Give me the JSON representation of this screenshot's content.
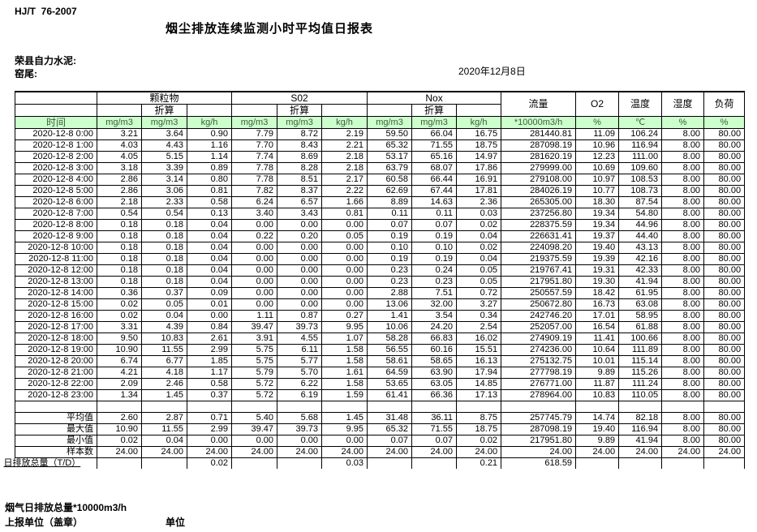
{
  "header": {
    "standard_no": "HJ/T  76-2007",
    "title": "烟尘排放连续监测小时平均值日报表",
    "company": "荣县自力水泥:",
    "station": "窑尾:",
    "date": "2020年12月8日"
  },
  "table": {
    "time_label": "时间",
    "converted_label": "折算",
    "groups": [
      "颗粒物",
      "S02",
      "Nox"
    ],
    "single_cols": [
      "流量",
      "O2",
      "温度",
      "湿度",
      "负荷"
    ],
    "units": [
      "mg/m3",
      "mg/m3",
      "kg/h",
      "mg/m3",
      "mg/m3",
      "kg/h",
      "mg/m3",
      "mg/m3",
      "kg/h",
      "*10000m3/h",
      "%",
      "℃",
      "%",
      "%"
    ],
    "rows": [
      {
        "time": "2020-12-8 0:00",
        "values": [
          "3.21",
          "3.64",
          "0.90",
          "7.79",
          "8.72",
          "2.19",
          "59.50",
          "66.04",
          "16.75",
          "281440.81",
          "11.09",
          "106.24",
          "8.00",
          "80.00"
        ]
      },
      {
        "time": "2020-12-8 1:00",
        "values": [
          "4.03",
          "4.43",
          "1.16",
          "7.70",
          "8.43",
          "2.21",
          "65.32",
          "71.55",
          "18.75",
          "287098.19",
          "10.96",
          "116.94",
          "8.00",
          "80.00"
        ]
      },
      {
        "time": "2020-12-8 2:00",
        "values": [
          "4.05",
          "5.15",
          "1.14",
          "7.74",
          "8.69",
          "2.18",
          "53.17",
          "65.16",
          "14.97",
          "281620.19",
          "12.23",
          "111.00",
          "8.00",
          "80.00"
        ]
      },
      {
        "time": "2020-12-8 3:00",
        "values": [
          "3.18",
          "3.39",
          "0.89",
          "7.78",
          "8.28",
          "2.18",
          "63.79",
          "68.07",
          "17.86",
          "279999.00",
          "10.69",
          "109.60",
          "8.00",
          "80.00"
        ]
      },
      {
        "time": "2020-12-8 4:00",
        "values": [
          "2.86",
          "3.14",
          "0.80",
          "7.78",
          "8.51",
          "2.17",
          "60.58",
          "66.44",
          "16.91",
          "279108.00",
          "10.97",
          "108.53",
          "8.00",
          "80.00"
        ]
      },
      {
        "time": "2020-12-8 5:00",
        "values": [
          "2.86",
          "3.06",
          "0.81",
          "7.82",
          "8.37",
          "2.22",
          "62.69",
          "67.44",
          "17.81",
          "284026.19",
          "10.77",
          "108.73",
          "8.00",
          "80.00"
        ]
      },
      {
        "time": "2020-12-8 6:00",
        "values": [
          "2.18",
          "2.33",
          "0.58",
          "6.24",
          "6.57",
          "1.66",
          "8.89",
          "14.63",
          "2.36",
          "265305.00",
          "18.30",
          "87.54",
          "8.00",
          "80.00"
        ]
      },
      {
        "time": "2020-12-8 7:00",
        "values": [
          "0.54",
          "0.54",
          "0.13",
          "3.40",
          "3.43",
          "0.81",
          "0.11",
          "0.11",
          "0.03",
          "237256.80",
          "19.34",
          "54.80",
          "8.00",
          "80.00"
        ]
      },
      {
        "time": "2020-12-8 8:00",
        "values": [
          "0.18",
          "0.18",
          "0.04",
          "0.00",
          "0.00",
          "0.00",
          "0.07",
          "0.07",
          "0.02",
          "228375.59",
          "19.34",
          "44.96",
          "8.00",
          "80.00"
        ]
      },
      {
        "time": "2020-12-8 9:00",
        "values": [
          "0.18",
          "0.18",
          "0.04",
          "0.22",
          "0.20",
          "0.05",
          "0.19",
          "0.19",
          "0.04",
          "226631.41",
          "19.37",
          "44.40",
          "8.00",
          "80.00"
        ]
      },
      {
        "time": "2020-12-8 10:00",
        "values": [
          "0.18",
          "0.18",
          "0.04",
          "0.00",
          "0.00",
          "0.00",
          "0.10",
          "0.10",
          "0.02",
          "224098.20",
          "19.40",
          "43.13",
          "8.00",
          "80.00"
        ]
      },
      {
        "time": "2020-12-8 11:00",
        "values": [
          "0.18",
          "0.18",
          "0.04",
          "0.00",
          "0.00",
          "0.00",
          "0.19",
          "0.19",
          "0.04",
          "219375.59",
          "19.39",
          "42.16",
          "8.00",
          "80.00"
        ]
      },
      {
        "time": "2020-12-8 12:00",
        "values": [
          "0.18",
          "0.18",
          "0.04",
          "0.00",
          "0.00",
          "0.00",
          "0.23",
          "0.24",
          "0.05",
          "219767.41",
          "19.31",
          "42.33",
          "8.00",
          "80.00"
        ]
      },
      {
        "time": "2020-12-8 13:00",
        "values": [
          "0.18",
          "0.18",
          "0.04",
          "0.00",
          "0.00",
          "0.00",
          "0.23",
          "0.23",
          "0.05",
          "217951.80",
          "19.30",
          "41.94",
          "8.00",
          "80.00"
        ]
      },
      {
        "time": "2020-12-8 14:00",
        "values": [
          "0.36",
          "0.37",
          "0.09",
          "0.00",
          "0.00",
          "0.00",
          "2.88",
          "7.51",
          "0.72",
          "250557.59",
          "18.42",
          "61.95",
          "8.00",
          "80.00"
        ]
      },
      {
        "time": "2020-12-8 15:00",
        "values": [
          "0.02",
          "0.05",
          "0.01",
          "0.00",
          "0.00",
          "0.00",
          "13.06",
          "32.00",
          "3.27",
          "250672.80",
          "16.73",
          "63.08",
          "8.00",
          "80.00"
        ]
      },
      {
        "time": "2020-12-8 16:00",
        "values": [
          "0.02",
          "0.04",
          "0.00",
          "1.11",
          "0.87",
          "0.27",
          "1.41",
          "3.54",
          "0.34",
          "242746.20",
          "17.01",
          "58.95",
          "8.00",
          "80.00"
        ]
      },
      {
        "time": "2020-12-8 17:00",
        "values": [
          "3.31",
          "4.39",
          "0.84",
          "39.47",
          "39.73",
          "9.95",
          "10.06",
          "24.20",
          "2.54",
          "252057.00",
          "16.54",
          "61.88",
          "8.00",
          "80.00"
        ]
      },
      {
        "time": "2020-12-8 18:00",
        "values": [
          "9.50",
          "10.83",
          "2.61",
          "3.91",
          "4.55",
          "1.07",
          "58.28",
          "66.83",
          "16.02",
          "274909.19",
          "11.41",
          "100.66",
          "8.00",
          "80.00"
        ]
      },
      {
        "time": "2020-12-8 19:00",
        "values": [
          "10.90",
          "11.55",
          "2.99",
          "5.75",
          "6.11",
          "1.58",
          "56.55",
          "60.16",
          "15.51",
          "274236.00",
          "10.64",
          "111.89",
          "8.00",
          "80.00"
        ]
      },
      {
        "time": "2020-12-8 20:00",
        "values": [
          "6.74",
          "6.77",
          "1.85",
          "5.75",
          "5.77",
          "1.58",
          "58.61",
          "58.65",
          "16.13",
          "275132.75",
          "10.01",
          "115.14",
          "8.00",
          "80.00"
        ]
      },
      {
        "time": "2020-12-8 21:00",
        "values": [
          "4.21",
          "4.18",
          "1.17",
          "5.79",
          "5.70",
          "1.61",
          "64.59",
          "63.90",
          "17.94",
          "277798.19",
          "9.89",
          "115.26",
          "8.00",
          "80.00"
        ]
      },
      {
        "time": "2020-12-8 22:00",
        "values": [
          "2.09",
          "2.46",
          "0.58",
          "5.72",
          "6.22",
          "1.58",
          "53.65",
          "63.05",
          "14.85",
          "276771.00",
          "11.87",
          "111.24",
          "8.00",
          "80.00"
        ]
      },
      {
        "time": "2020-12-8 23:00",
        "values": [
          "1.34",
          "1.45",
          "0.37",
          "5.72",
          "6.19",
          "1.59",
          "61.41",
          "66.36",
          "17.13",
          "278964.00",
          "10.83",
          "110.05",
          "8.00",
          "80.00"
        ]
      }
    ],
    "summary": [
      {
        "label": "平均值",
        "values": [
          "2.60",
          "2.87",
          "0.71",
          "5.40",
          "5.68",
          "1.45",
          "31.48",
          "36.11",
          "8.75",
          "257745.79",
          "14.74",
          "82.18",
          "8.00",
          "80.00"
        ]
      },
      {
        "label": "最大值",
        "values": [
          "10.90",
          "11.55",
          "2.99",
          "39.47",
          "39.73",
          "9.95",
          "65.32",
          "71.55",
          "18.75",
          "287098.19",
          "19.40",
          "116.94",
          "8.00",
          "80.00"
        ]
      },
      {
        "label": "最小值",
        "values": [
          "0.02",
          "0.04",
          "0.00",
          "0.00",
          "0.00",
          "0.00",
          "0.07",
          "0.07",
          "0.02",
          "217951.80",
          "9.89",
          "41.94",
          "8.00",
          "80.00"
        ]
      },
      {
        "label": "样本数",
        "values": [
          "24.00",
          "24.00",
          "24.00",
          "24.00",
          "24.00",
          "24.00",
          "24.00",
          "24.00",
          "24.00",
          "24.00",
          "24.00",
          "24.00",
          "24.00",
          "24.00"
        ]
      },
      {
        "label": "日排放总量（T/D）",
        "values": [
          "",
          "",
          "0.02",
          "",
          "",
          "0.03",
          "",
          "",
          "0.21",
          "618.59",
          "",
          "",
          "",
          ""
        ]
      }
    ],
    "colors": {
      "header_bg": "#ccffcc",
      "header_text": "#3d5c3d",
      "border": "#000000"
    }
  },
  "footer": {
    "note": "烟气日排放总量*10000m3/h",
    "report_unit_label": "上报单位（盖章）",
    "unit_label": "单位"
  }
}
